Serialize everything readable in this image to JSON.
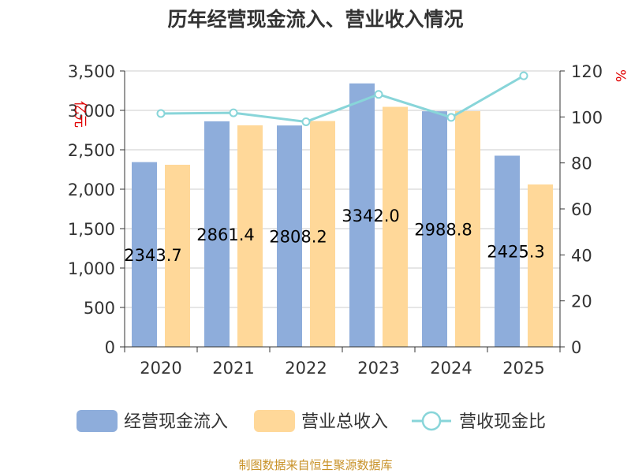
{
  "chart_data": {
    "type": "bar",
    "title": "历年经营现金流入、营业收入情况",
    "categories": [
      "2020",
      "2021",
      "2022",
      "2023",
      "2024",
      "2025"
    ],
    "series": [
      {
        "name": "经营现金流入",
        "kind": "bar",
        "axis": "left",
        "color": "#8eaddb",
        "values": [
          2343.7,
          2861.4,
          2808.2,
          3342.0,
          2988.8,
          2425.3
        ]
      },
      {
        "name": "营业总收入",
        "kind": "bar",
        "axis": "left",
        "color": "#ffd899",
        "values": [
          2310,
          2810,
          2865,
          3045,
          2990,
          2060
        ]
      },
      {
        "name": "营收现金比",
        "kind": "line",
        "axis": "right",
        "color": "#88d5d9",
        "values": [
          101.5,
          101.8,
          97.9,
          109.8,
          99.8,
          117.9
        ]
      }
    ],
    "data_labels": [
      "2343.7",
      "2861.4",
      "2808.2",
      "3342.0",
      "2988.8",
      "2425.3"
    ],
    "left_axis": {
      "unit": "亿元",
      "min": 0,
      "max": 3500,
      "step": 500,
      "ticks": [
        "0",
        "500",
        "1,000",
        "1,500",
        "2,000",
        "2,500",
        "3,000",
        "3,500"
      ]
    },
    "right_axis": {
      "unit": "%",
      "min": 0,
      "max": 120,
      "step": 20,
      "ticks": [
        "0",
        "20",
        "40",
        "60",
        "80",
        "100",
        "120"
      ]
    },
    "legend_position": "bottom",
    "grid": true
  },
  "source": "制图数据来自恒生聚源数据库"
}
